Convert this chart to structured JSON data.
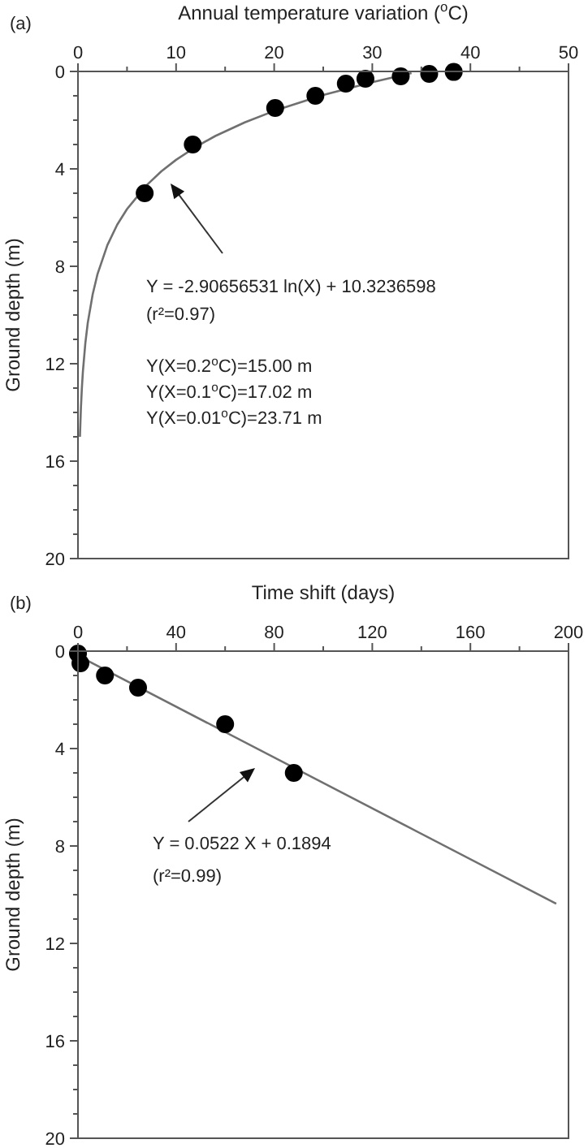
{
  "chart_data": [
    {
      "type": "scatter",
      "xlabel": "Annual temperature variation ($^{o}$C)",
      "ylabel": "Ground depth (m)",
      "xlim": [
        0,
        50
      ],
      "xticks": [
        0,
        {
          "value": 5,
          "label": null
        },
        10,
        {
          "value": 15,
          "label": null
        },
        20,
        {
          "value": 25,
          "label": null
        },
        30,
        {
          "value": 35,
          "label": null
        },
        40,
        {
          "value": 45,
          "label": null
        },
        50
      ],
      "ylim": [
        20,
        0
      ],
      "yticks": [
        0,
        {
          "value": 1,
          "label": null
        },
        {
          "value": 2,
          "label": null
        },
        {
          "value": 3,
          "label": null
        },
        4,
        {
          "value": 5,
          "label": null
        },
        {
          "value": 6,
          "label": null
        },
        {
          "value": 7,
          "label": null
        },
        8,
        {
          "value": 9,
          "label": null
        },
        {
          "value": 10,
          "label": null
        },
        {
          "value": 11,
          "label": null
        },
        12,
        {
          "value": 13,
          "label": null
        },
        {
          "value": 14,
          "label": null
        },
        {
          "value": 15,
          "label": null
        },
        16,
        {
          "value": 17,
          "label": null
        },
        {
          "value": 18,
          "label": null
        },
        {
          "value": 19,
          "label": null
        },
        20
      ],
      "grid": false,
      "marker": "circle",
      "series": [
        {
          "color": "#000000",
          "x": [
            38.3,
            35.8,
            32.9,
            29.3,
            27.3,
            24.2,
            20.1,
            11.7,
            6.8
          ],
          "values": [
            0.02,
            0.1,
            0.2,
            0.3,
            0.5,
            1.0,
            1.5,
            3.0,
            5.0
          ]
        },
        {
          "type": "line",
          "marker": "none",
          "color": "#707070",
          "x": [
            0.2,
            0.3,
            0.4,
            0.5,
            0.75,
            1,
            1.5,
            2,
            3,
            4,
            5,
            7,
            8.5,
            10,
            12,
            14,
            17,
            20,
            25,
            30,
            34
          ],
          "values": [
            15.0,
            13.82,
            12.99,
            12.34,
            11.16,
            10.32,
            9.15,
            8.31,
            7.13,
            6.29,
            5.65,
            4.67,
            4.1,
            3.63,
            3.1,
            2.65,
            2.09,
            1.62,
            0.97,
            0.44,
            0.07
          ]
        }
      ],
      "annotations": [
        "(a)",
        "Y = -2.90656531 ln(X) + 10.3236598",
        "(r²=0.97)",
        "Y(X=0.2$^{o}$C)=15.00 m",
        "Y(X=0.1$^{o}$C)=17.02 m",
        "Y(X=0.01$^{o}$C)=23.71 m"
      ]
    },
    {
      "type": "scatter",
      "xlabel": "Time shift (days)",
      "ylabel": "Ground depth (m)",
      "xlim": [
        0,
        200
      ],
      "xticks": [
        0,
        {
          "value": 20,
          "label": null
        },
        40,
        {
          "value": 60,
          "label": null
        },
        80,
        {
          "value": 100,
          "label": null
        },
        120,
        {
          "value": 140,
          "label": null
        },
        160,
        {
          "value": 180,
          "label": null
        },
        200
      ],
      "ylim": [
        20,
        0
      ],
      "yticks": [
        0,
        {
          "value": 1,
          "label": null
        },
        {
          "value": 2,
          "label": null
        },
        {
          "value": 3,
          "label": null
        },
        4,
        {
          "value": 5,
          "label": null
        },
        {
          "value": 6,
          "label": null
        },
        {
          "value": 7,
          "label": null
        },
        8,
        {
          "value": 9,
          "label": null
        },
        {
          "value": 10,
          "label": null
        },
        {
          "value": 11,
          "label": null
        },
        12,
        {
          "value": 13,
          "label": null
        },
        {
          "value": 14,
          "label": null
        },
        {
          "value": 15,
          "label": null
        },
        16,
        {
          "value": 17,
          "label": null
        },
        {
          "value": 18,
          "label": null
        },
        {
          "value": 19,
          "label": null
        },
        20
      ],
      "grid": false,
      "marker": "circle",
      "series": [
        {
          "color": "#000000",
          "x": [
            0,
            1,
            11,
            24.5,
            60,
            88
          ],
          "values": [
            0.1,
            0.5,
            1.0,
            1.5,
            3.0,
            5.0
          ]
        },
        {
          "type": "line",
          "marker": "none",
          "color": "#707070",
          "x": [
            0,
            195
          ],
          "values": [
            0.19,
            10.37
          ]
        }
      ],
      "annotations": [
        "(b)",
        "Y = 0.0522 X + 0.1894",
        "(r²=0.99)"
      ]
    }
  ]
}
